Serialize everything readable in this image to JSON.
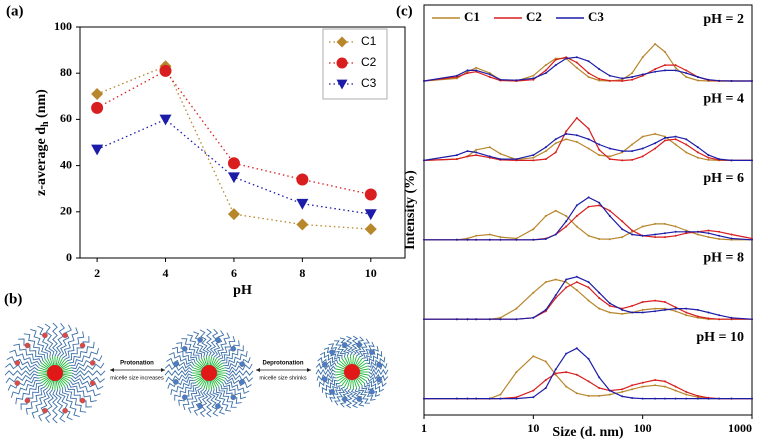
{
  "chart_data": [
    {
      "type": "line",
      "panel_label": "(a)",
      "xlabel": "pH",
      "ylabel": "z-average d",
      "ylabel_subscript": "h",
      "ylabel_suffix": " (nm)",
      "x": [
        2,
        4,
        6,
        8,
        10
      ],
      "xlim": [
        1.5,
        11
      ],
      "xticks": [
        2,
        4,
        6,
        8,
        10
      ],
      "ylim": [
        0,
        100
      ],
      "yticks": [
        0,
        20,
        40,
        60,
        80,
        100
      ],
      "legend": "upper right",
      "series": [
        {
          "name": "C1",
          "color": "#b8862b",
          "marker": "diamond",
          "values": [
            71,
            83,
            19,
            14.5,
            12.5
          ]
        },
        {
          "name": "C2",
          "color": "#d81e1e",
          "marker": "circle",
          "values": [
            65,
            81,
            41,
            34,
            27.5
          ]
        },
        {
          "name": "C3",
          "color": "#1c1ca8",
          "marker": "triangle-down",
          "values": [
            47,
            60,
            35,
            23.5,
            19
          ]
        }
      ]
    },
    {
      "type": "stacked-lines",
      "panel_label": "(c)",
      "xlabel": "Size (d. nm)",
      "ylabel": "Intensity (%)",
      "log_x": true,
      "xlim": [
        1,
        1000
      ],
      "xticks": [
        1,
        10,
        100,
        1000
      ],
      "ylim": [
        0,
        30
      ],
      "legend": "upper left",
      "x": [
        1,
        2,
        2.5,
        3,
        4,
        5,
        7,
        10,
        13,
        16,
        20,
        25,
        32,
        40,
        50,
        65,
        80,
        100,
        130,
        160,
        200,
        250,
        320,
        400,
        500,
        650,
        1000
      ],
      "series": [
        {
          "name": "C1",
          "color": "#b8862b"
        },
        {
          "name": "C2",
          "color": "#d81e1e"
        },
        {
          "name": "C3",
          "color": "#1c1ca8"
        }
      ],
      "subplots": [
        {
          "label": "pH = 2",
          "values": [
            [
              0,
              1,
              3.5,
              5,
              3,
              0.5,
              0,
              2,
              6,
              8.5,
              8.5,
              5,
              1.5,
              0.2,
              0,
              0.5,
              3,
              9,
              14,
              11,
              5,
              1.5,
              0.2,
              0,
              0,
              0,
              0
            ],
            [
              0,
              1.5,
              3,
              3.5,
              1.5,
              0.2,
              0,
              0.5,
              4,
              8,
              9,
              7,
              3,
              0.8,
              0.1,
              0,
              0.5,
              2,
              4.5,
              6,
              6,
              4,
              1.5,
              0.3,
              0,
              0,
              0
            ],
            [
              0,
              2,
              4,
              4,
              2.5,
              0.5,
              0.3,
              1,
              3,
              6,
              8.5,
              9,
              7.5,
              4.5,
              2,
              1,
              1.5,
              2.5,
              3.5,
              4,
              4,
              3,
              1.5,
              0.5,
              0.1,
              0,
              0
            ]
          ]
        },
        {
          "label": "pH = 4",
          "values": [
            [
              0,
              0.5,
              1.5,
              4,
              5,
              2.5,
              0.3,
              1,
              3.5,
              6.5,
              8,
              7,
              4.5,
              2,
              1.5,
              3,
              6,
              9,
              10,
              9,
              6,
              3,
              1,
              0.2,
              0,
              0,
              0
            ],
            [
              0,
              0.5,
              1.5,
              2,
              1,
              0.2,
              0,
              0,
              0.5,
              3,
              11,
              16,
              12,
              4,
              0.5,
              0,
              0.2,
              1.5,
              4.5,
              7.5,
              8,
              6,
              3,
              1,
              0.2,
              0,
              0
            ],
            [
              0,
              2,
              3.5,
              3,
              1.5,
              0.5,
              0.5,
              2,
              5,
              8,
              10,
              9.5,
              8,
              6,
              4.5,
              3.5,
              3.5,
              4.5,
              6.5,
              8.5,
              9,
              8,
              5,
              2,
              0.5,
              0,
              0
            ]
          ]
        },
        {
          "label": "pH = 6",
          "values": [
            [
              0,
              0,
              0.5,
              1.5,
              2,
              1,
              0.5,
              4,
              9,
              11,
              9,
              5,
              1.5,
              0.3,
              0.2,
              1,
              3,
              5,
              6,
              6,
              5,
              3.5,
              2,
              1,
              0.3,
              0,
              0
            ],
            [
              0,
              0,
              0,
              0,
              0,
              0,
              0,
              0,
              0.5,
              2,
              5,
              9,
              12.5,
              13,
              11,
              7,
              3.5,
              1.5,
              1,
              1,
              1.5,
              2.5,
              3,
              3.5,
              3,
              2,
              0.5
            ],
            [
              0,
              0,
              0,
              0,
              0,
              0,
              0,
              0,
              0.3,
              2,
              7,
              13,
              16,
              14,
              9,
              4,
              2,
              1.5,
              2,
              2.5,
              3,
              3,
              3,
              2.5,
              1.5,
              0.5,
              0
            ]
          ]
        },
        {
          "label": "pH = 8",
          "values": [
            [
              0,
              0,
              0,
              0,
              0,
              0.5,
              4,
              10,
              14,
              15,
              14,
              11,
              7,
              4,
              2.5,
              2,
              2.5,
              3.5,
              4,
              4,
              3,
              1.5,
              0.5,
              0,
              0,
              0,
              0
            ],
            [
              0,
              0,
              0,
              0,
              0,
              0,
              0,
              0.5,
              3,
              8,
              12,
              14,
              12,
              8,
              5,
              4,
              5,
              6.5,
              7,
              6.5,
              4.5,
              2.5,
              1,
              0.3,
              0,
              0,
              0
            ],
            [
              0,
              0,
              0,
              0,
              0,
              0,
              0,
              0.5,
              3.5,
              9,
              15,
              16,
              14,
              10,
              6,
              3.5,
              2.5,
              2.5,
              3,
              3.5,
              4,
              4,
              3.5,
              2.5,
              1.5,
              0.5,
              0
            ]
          ]
        },
        {
          "label": "pH = 10",
          "values": [
            [
              0,
              0,
              0,
              0,
              0,
              1.5,
              10,
              16,
              14,
              9,
              4.5,
              2,
              1,
              1,
              1.5,
              2.5,
              3.5,
              4.5,
              5,
              4.5,
              3,
              1.5,
              0.5,
              0,
              0,
              0,
              0
            ],
            [
              0,
              0,
              0,
              0,
              0,
              0,
              0.5,
              3,
              7,
              9.5,
              10,
              9,
              6.5,
              4,
              3,
              3.5,
              5,
              6,
              7,
              6.5,
              4.5,
              2.5,
              1,
              0.3,
              0,
              0,
              0
            ],
            [
              0,
              0,
              0,
              0,
              0,
              0,
              0,
              0.5,
              4,
              11,
              17,
              19,
              15,
              8,
              3,
              0.8,
              0.2,
              0,
              0,
              0,
              0,
              0,
              0,
              0,
              0,
              0,
              0
            ]
          ]
        }
      ]
    }
  ],
  "diagram": {
    "panel_label": "(b)",
    "arrows": [
      {
        "label": "Protonation",
        "caption": "micelle size increases"
      },
      {
        "label": "Deprotonation",
        "caption": "micelle size shrinks"
      }
    ]
  }
}
